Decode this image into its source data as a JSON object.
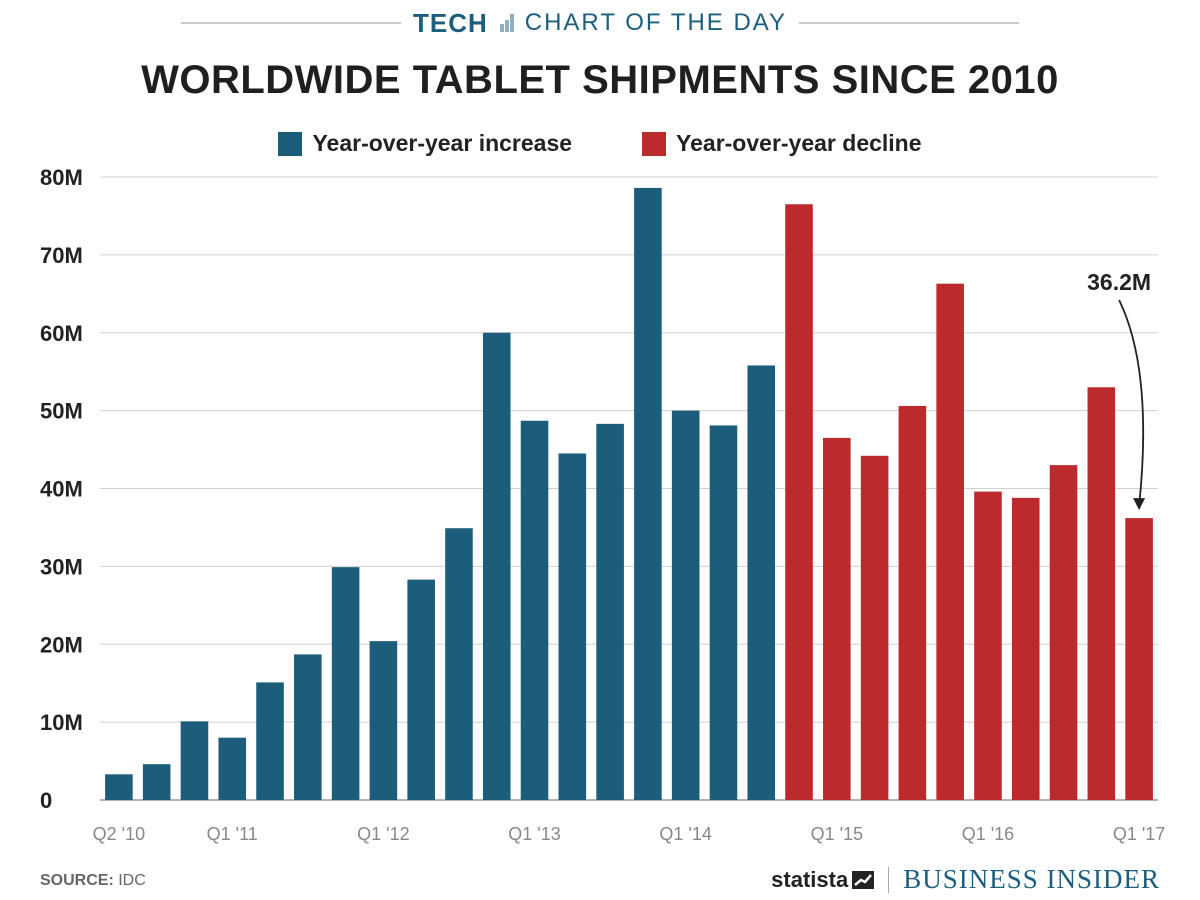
{
  "header": {
    "kicker_tech": "TECH",
    "kicker_sub": "CHART OF THE DAY",
    "title": "WORLDWIDE TABLET SHIPMENTS SINCE 2010"
  },
  "legend": {
    "increase_label": "Year-over-year increase",
    "decline_label": "Year-over-year decline"
  },
  "colors": {
    "increase": "#1b5d7b",
    "decline": "#bd2a2d",
    "grid": "#d0d0d0",
    "brand": "#1d5d7d"
  },
  "chart_data": {
    "type": "bar",
    "title": "WORLDWIDE TABLET SHIPMENTS SINCE 2010",
    "xlabel": "",
    "ylabel": "",
    "ylim": [
      0,
      80
    ],
    "y_unit": "M",
    "yticks": [
      0,
      10,
      20,
      30,
      40,
      50,
      60,
      70,
      80
    ],
    "ytick_labels": [
      "0",
      "10M",
      "20M",
      "30M",
      "40M",
      "50M",
      "60M",
      "70M",
      "80M"
    ],
    "grid": true,
    "legend_position": "top-center",
    "categories": [
      "Q2 '10",
      "Q3 '10",
      "Q4 '10",
      "Q1 '11",
      "Q2 '11",
      "Q3 '11",
      "Q4 '11",
      "Q1 '12",
      "Q2 '12",
      "Q3 '12",
      "Q4 '12",
      "Q1 '13",
      "Q2 '13",
      "Q3 '13",
      "Q4 '13",
      "Q1 '14",
      "Q2 '14",
      "Q3 '14",
      "Q4 '14",
      "Q1 '15",
      "Q2 '15",
      "Q3 '15",
      "Q4 '15",
      "Q1 '16",
      "Q2 '16",
      "Q3 '16",
      "Q4 '16",
      "Q1 '17"
    ],
    "values": [
      3.3,
      4.6,
      10.1,
      8.0,
      15.1,
      18.7,
      29.9,
      20.4,
      28.3,
      34.9,
      60.0,
      48.7,
      44.5,
      48.3,
      78.6,
      50.0,
      48.1,
      55.8,
      76.5,
      46.5,
      44.2,
      50.6,
      66.3,
      39.6,
      38.8,
      43.0,
      53.0,
      36.2
    ],
    "series_type": [
      "increase",
      "increase",
      "increase",
      "increase",
      "increase",
      "increase",
      "increase",
      "increase",
      "increase",
      "increase",
      "increase",
      "increase",
      "increase",
      "increase",
      "increase",
      "increase",
      "increase",
      "increase",
      "decline",
      "decline",
      "decline",
      "decline",
      "decline",
      "decline",
      "decline",
      "decline",
      "decline",
      "decline"
    ],
    "x_tick_labels": [
      {
        "index": 0,
        "label": "Q2 '10"
      },
      {
        "index": 3,
        "label": "Q1 '11"
      },
      {
        "index": 7,
        "label": "Q1 '12"
      },
      {
        "index": 11,
        "label": "Q1 '13"
      },
      {
        "index": 15,
        "label": "Q1 '14"
      },
      {
        "index": 19,
        "label": "Q1 '15"
      },
      {
        "index": 23,
        "label": "Q1 '16"
      },
      {
        "index": 27,
        "label": "Q1 '17"
      }
    ],
    "annotation": {
      "index": 27,
      "label": "36.2M"
    }
  },
  "footer": {
    "source_label": "SOURCE:",
    "source_value": "IDC",
    "statista": "statista",
    "publisher": "BUSINESS INSIDER"
  }
}
